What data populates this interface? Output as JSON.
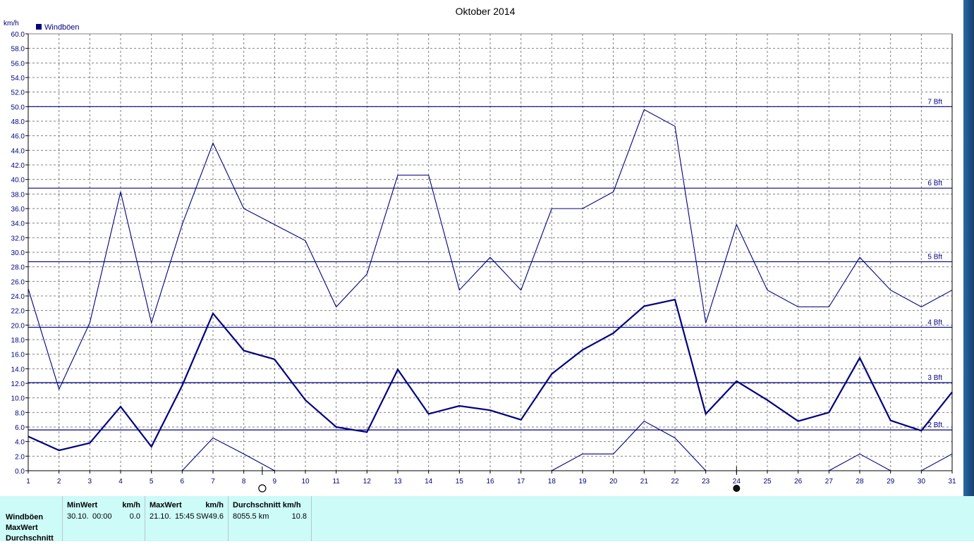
{
  "chart_data": {
    "type": "line",
    "title": "Oktober 2014",
    "ylabel": "km/h",
    "xlabel": "",
    "legend": "Windböen",
    "legend_placement": "top-left",
    "grid": true,
    "ylim": [
      0,
      60
    ],
    "xlim": [
      1,
      31
    ],
    "yticks": [
      "0.0",
      "2.0",
      "4.0",
      "6.0",
      "8.0",
      "10.0",
      "12.0",
      "14.0",
      "16.0",
      "18.0",
      "20.0",
      "22.0",
      "24.0",
      "26.0",
      "28.0",
      "30.0",
      "32.0",
      "34.0",
      "36.0",
      "38.0",
      "40.0",
      "42.0",
      "44.0",
      "46.0",
      "48.0",
      "50.0",
      "52.0",
      "54.0",
      "56.0",
      "58.0",
      "60.0"
    ],
    "x": [
      1,
      2,
      3,
      4,
      5,
      6,
      7,
      8,
      9,
      10,
      11,
      12,
      13,
      14,
      15,
      16,
      17,
      18,
      19,
      20,
      21,
      22,
      23,
      24,
      25,
      26,
      27,
      28,
      29,
      30,
      31
    ],
    "series": [
      {
        "role": "max",
        "values": [
          25.0,
          11.2,
          20.3,
          38.3,
          20.3,
          33.8,
          45.0,
          36.0,
          33.8,
          31.6,
          22.5,
          27.0,
          40.6,
          40.6,
          24.8,
          29.3,
          24.8,
          36.0,
          36.0,
          38.3,
          49.6,
          47.3,
          20.3,
          33.8,
          24.8,
          22.5,
          22.5,
          29.3,
          24.8,
          22.5,
          24.8
        ]
      },
      {
        "role": "mean",
        "values": [
          4.7,
          2.8,
          3.8,
          8.8,
          3.3,
          11.7,
          21.6,
          16.5,
          15.3,
          9.7,
          6.0,
          5.3,
          13.9,
          7.8,
          8.9,
          8.3,
          7.0,
          13.3,
          16.6,
          18.9,
          22.6,
          23.5,
          7.8,
          12.3,
          9.7,
          6.8,
          8.0,
          15.5,
          6.9,
          5.5,
          10.8
        ]
      },
      {
        "role": "min",
        "values": [
          null,
          null,
          null,
          null,
          null,
          0.0,
          4.5,
          2.3,
          0.0,
          null,
          null,
          null,
          null,
          null,
          null,
          null,
          null,
          0.0,
          2.3,
          2.3,
          6.8,
          4.5,
          0.0,
          null,
          null,
          null,
          0.0,
          2.3,
          0.0,
          0.0,
          2.3
        ]
      }
    ],
    "reference_lines": [
      {
        "label": "2 Bft",
        "value": 5.6
      },
      {
        "label": "3 Bft",
        "value": 12.1
      },
      {
        "label": "4 Bft",
        "value": 19.7
      },
      {
        "label": "5 Bft",
        "value": 28.7
      },
      {
        "label": "6 Bft",
        "value": 38.8
      },
      {
        "label": "7 Bft",
        "value": 50.0
      }
    ],
    "moon_phases": [
      {
        "day": 8.6,
        "phase": "full"
      },
      {
        "day": 24,
        "phase": "new"
      }
    ],
    "colors": {
      "series": "#000080",
      "grid": "#808080",
      "reference": "#000080"
    }
  },
  "summary": {
    "row_labels": [
      "Windböen",
      "MaxWert",
      "Durchschnitt"
    ],
    "min": {
      "header": "MinWert",
      "unit": "km/h",
      "date": "30.10.",
      "time": "00:00",
      "value": "0.0"
    },
    "max": {
      "header": "MaxWert",
      "unit": "km/h",
      "date": "21.10.",
      "time": "15:45",
      "dir": "SW",
      "value": "49.6"
    },
    "avg": {
      "header": "Durchschnitt km/h",
      "distance": "8055.5 km",
      "value": "10.8"
    }
  }
}
